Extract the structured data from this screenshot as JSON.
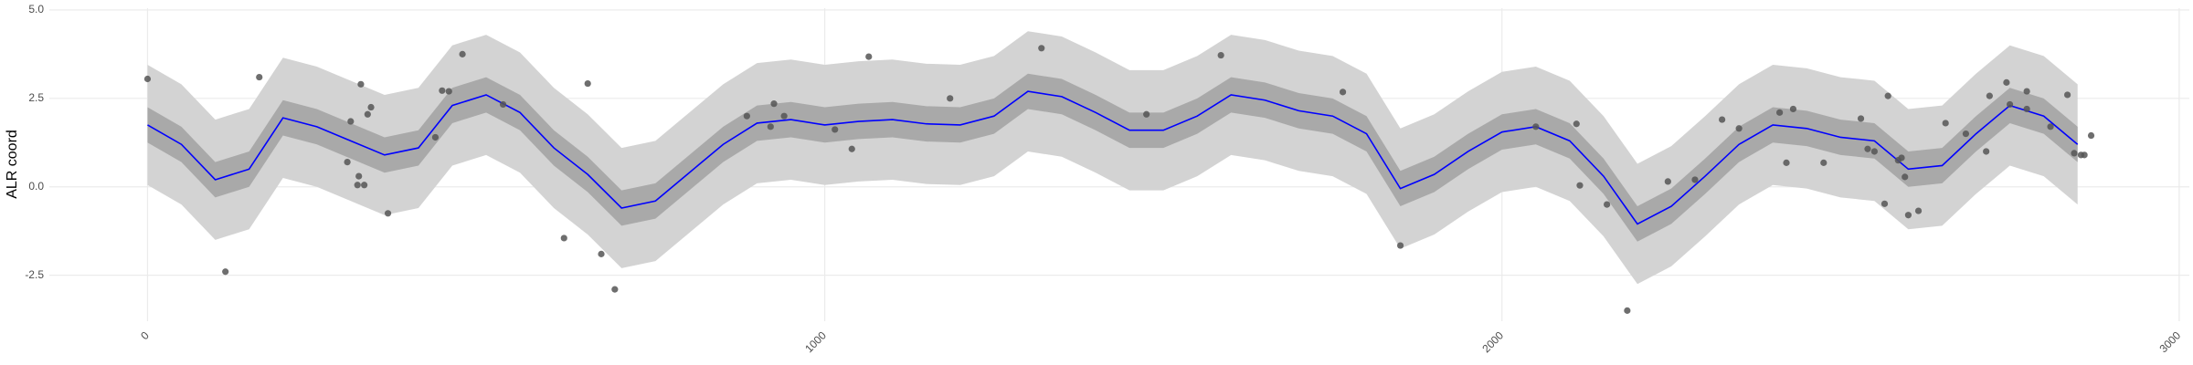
{
  "chart_data": {
    "type": "line",
    "y_label": "ALR coord",
    "xlim": [
      -145,
      3015
    ],
    "ylim": [
      -3.8,
      5.05
    ],
    "xticks": [
      0,
      1000,
      2000,
      3000
    ],
    "yticks": [
      -2.5,
      {
        "value": 0,
        "label": "0.0"
      },
      2.5,
      {
        "value": 5,
        "label": "5.0"
      }
    ],
    "grid": true,
    "x": [
      0,
      50,
      100,
      150,
      200,
      250,
      300,
      350,
      400,
      450,
      500,
      550,
      600,
      650,
      700,
      750,
      800,
      850,
      900,
      950,
      1000,
      1050,
      1100,
      1150,
      1200,
      1250,
      1300,
      1350,
      1400,
      1450,
      1500,
      1550,
      1600,
      1650,
      1700,
      1750,
      1800,
      1850,
      1900,
      1950,
      2000,
      2050,
      2100,
      2150,
      2200,
      2250,
      2300,
      2350,
      2400,
      2450,
      2500,
      2550,
      2600,
      2650,
      2700,
      2750,
      2800,
      2850
    ],
    "bands": [
      {
        "color": "#d3d3d3",
        "lower": [
          0.05,
          -0.5,
          -1.5,
          -1.2,
          0.25,
          0.0,
          -0.4,
          -0.8,
          -0.6,
          0.6,
          0.9,
          0.4,
          -0.6,
          -1.35,
          -2.3,
          -2.1,
          -1.3,
          -0.5,
          0.1,
          0.2,
          0.05,
          0.15,
          0.2,
          0.08,
          0.05,
          0.3,
          1.0,
          0.85,
          0.4,
          -0.1,
          -0.1,
          0.3,
          0.9,
          0.75,
          0.45,
          0.3,
          -0.2,
          -1.75,
          -1.35,
          -0.7,
          -0.15,
          0.0,
          -0.4,
          -1.4,
          -2.75,
          -2.25,
          -1.4,
          -0.5,
          0.05,
          -0.05,
          -0.3,
          -0.4,
          -1.2,
          -1.1,
          -0.2,
          0.6,
          0.3,
          -0.5
        ],
        "upper": [
          3.45,
          2.9,
          1.9,
          2.2,
          3.65,
          3.4,
          3.0,
          2.6,
          2.8,
          4.0,
          4.3,
          3.8,
          2.8,
          2.05,
          1.1,
          1.3,
          2.1,
          2.9,
          3.5,
          3.6,
          3.45,
          3.55,
          3.6,
          3.48,
          3.45,
          3.7,
          4.4,
          4.25,
          3.8,
          3.3,
          3.3,
          3.7,
          4.3,
          4.15,
          3.85,
          3.7,
          3.2,
          1.65,
          2.05,
          2.7,
          3.25,
          3.4,
          3.0,
          2.0,
          0.65,
          1.15,
          2.0,
          2.9,
          3.45,
          3.35,
          3.1,
          3.0,
          2.2,
          2.3,
          3.2,
          4.0,
          3.7,
          2.9
        ]
      },
      {
        "color": "#a9a9a9",
        "lower": [
          1.25,
          0.7,
          -0.3,
          0.0,
          1.45,
          1.2,
          0.8,
          0.4,
          0.6,
          1.8,
          2.1,
          1.6,
          0.6,
          -0.15,
          -1.1,
          -0.9,
          -0.1,
          0.7,
          1.3,
          1.4,
          1.25,
          1.35,
          1.4,
          1.28,
          1.25,
          1.5,
          2.2,
          2.05,
          1.6,
          1.1,
          1.1,
          1.5,
          2.1,
          1.95,
          1.65,
          1.5,
          1.0,
          -0.55,
          -0.15,
          0.5,
          1.05,
          1.2,
          0.8,
          -0.2,
          -1.55,
          -1.05,
          -0.2,
          0.7,
          1.25,
          1.15,
          0.9,
          0.8,
          0.0,
          0.1,
          1.0,
          1.8,
          1.5,
          0.7
        ],
        "upper": [
          2.25,
          1.7,
          0.7,
          1.0,
          2.45,
          2.2,
          1.8,
          1.4,
          1.6,
          2.8,
          3.1,
          2.6,
          1.6,
          0.85,
          -0.1,
          0.1,
          0.9,
          1.7,
          2.3,
          2.4,
          2.25,
          2.35,
          2.4,
          2.28,
          2.25,
          2.5,
          3.2,
          3.05,
          2.6,
          2.1,
          2.1,
          2.5,
          3.1,
          2.95,
          2.65,
          2.5,
          2.0,
          0.45,
          0.85,
          1.5,
          2.05,
          2.2,
          1.8,
          0.8,
          -0.55,
          -0.05,
          0.8,
          1.7,
          2.25,
          2.15,
          1.9,
          1.8,
          1.0,
          1.1,
          2.0,
          2.8,
          2.5,
          1.7
        ]
      }
    ],
    "line": {
      "color": "#0000ff",
      "values": [
        1.75,
        1.2,
        0.2,
        0.5,
        1.95,
        1.7,
        1.3,
        0.9,
        1.1,
        2.3,
        2.6,
        2.1,
        1.1,
        0.35,
        -0.6,
        -0.4,
        0.4,
        1.2,
        1.8,
        1.9,
        1.75,
        1.85,
        1.9,
        1.78,
        1.75,
        2.0,
        2.7,
        2.55,
        2.1,
        1.6,
        1.6,
        2.0,
        2.6,
        2.45,
        2.15,
        2.0,
        1.5,
        -0.05,
        0.35,
        1.0,
        1.55,
        1.7,
        1.3,
        0.3,
        -1.05,
        -0.55,
        0.3,
        1.2,
        1.75,
        1.65,
        1.4,
        1.3,
        0.5,
        0.6,
        1.5,
        2.3,
        2.0,
        1.2
      ]
    },
    "points": {
      "color": "#555555",
      "x": [
        0,
        115,
        165,
        295,
        300,
        310,
        315,
        312,
        320,
        325,
        330,
        355,
        425,
        435,
        445,
        465,
        525,
        615,
        650,
        670,
        690,
        885,
        920,
        925,
        940,
        1015,
        1040,
        1065,
        1185,
        1320,
        1475,
        1585,
        1765,
        1850,
        2050,
        2110,
        2115,
        2155,
        2185,
        2245,
        2285,
        2325,
        2350,
        2410,
        2430,
        2420,
        2475,
        2530,
        2540,
        2550,
        2565,
        2570,
        2585,
        2590,
        2595,
        2600,
        2615,
        2655,
        2685,
        2715,
        2720,
        2745,
        2750,
        2775,
        2775,
        2810,
        2835,
        2845,
        2855,
        2860,
        2870
      ],
      "y": [
        3.05,
        -2.4,
        3.1,
        0.7,
        1.85,
        0.05,
        2.9,
        0.3,
        0.05,
        2.05,
        2.25,
        -0.75,
        1.4,
        2.72,
        2.7,
        3.75,
        2.33,
        -1.45,
        2.92,
        -1.9,
        -2.9,
        2.0,
        1.7,
        2.35,
        2.0,
        1.62,
        1.07,
        3.68,
        2.5,
        3.92,
        2.05,
        3.72,
        2.68,
        -1.66,
        1.7,
        1.78,
        0.04,
        -0.5,
        -3.5,
        0.15,
        0.2,
        1.9,
        1.65,
        2.1,
        2.2,
        0.68,
        0.68,
        1.93,
        1.07,
        1.0,
        -0.48,
        2.57,
        0.75,
        0.82,
        0.28,
        -0.8,
        -0.68,
        1.8,
        1.5,
        1.0,
        2.57,
        2.95,
        2.33,
        2.7,
        2.2,
        1.7,
        2.6,
        0.95,
        0.9,
        0.9,
        1.45
      ]
    }
  }
}
